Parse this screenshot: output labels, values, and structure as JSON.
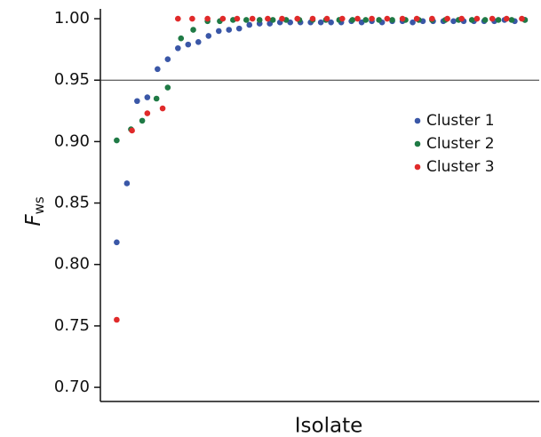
{
  "chart_data": {
    "type": "scatter",
    "x_label": "Isolate",
    "y_label": "F",
    "y_label_sub": "ws",
    "xlim": [
      0,
      43
    ],
    "ylim": [
      0.6885,
      1.008
    ],
    "yticks": [
      {
        "value": 1.0,
        "label": "1.00"
      },
      0.95,
      {
        "value": 0.9,
        "label": "0.90"
      },
      0.85,
      {
        "value": 0.8,
        "label": "0.80"
      },
      0.75,
      {
        "value": 0.7,
        "label": "0.70"
      }
    ],
    "hline": 0.95,
    "legend": "right",
    "series": [
      {
        "name": "Cluster 1",
        "color": "#3a57a7",
        "x": [
          1.6,
          2.6,
          3.6,
          4.6,
          5.6,
          6.6,
          7.6,
          8.6,
          9.6,
          10.6,
          11.6,
          12.6,
          13.6,
          14.6,
          15.6,
          16.6,
          17.6,
          18.6,
          19.6,
          20.6,
          21.6,
          22.6,
          23.6,
          24.6,
          25.6,
          26.6,
          27.6,
          28.6,
          29.6,
          30.6,
          31.6,
          32.6,
          33.6,
          34.6,
          35.6,
          36.6,
          37.6,
          38.6,
          39.6,
          40.6,
          41.6
        ],
        "values": [
          0.818,
          0.866,
          0.933,
          0.936,
          0.959,
          0.967,
          0.976,
          0.979,
          0.981,
          0.986,
          0.99,
          0.991,
          0.992,
          0.995,
          0.996,
          0.996,
          0.997,
          0.997,
          0.997,
          0.997,
          0.997,
          0.997,
          0.997,
          0.998,
          0.997,
          0.998,
          0.997,
          0.998,
          0.998,
          0.997,
          0.998,
          0.998,
          0.998,
          0.998,
          0.998,
          0.998,
          0.998,
          0.998,
          0.999,
          0.998,
          0.999
        ]
      },
      {
        "name": "Cluster 2",
        "color": "#1f7a45",
        "x": [
          1.6,
          3.0,
          4.1,
          5.5,
          6.6,
          7.9,
          9.1,
          10.5,
          11.7,
          13.0,
          14.3,
          15.6,
          16.9,
          18.2,
          19.5,
          20.8,
          22.1,
          23.4,
          24.7,
          26.0,
          27.3,
          28.6,
          29.9,
          31.2,
          32.5,
          33.8,
          35.1,
          36.4,
          37.7,
          39.0,
          40.3,
          41.6
        ],
        "values": [
          0.901,
          0.91,
          0.917,
          0.935,
          0.944,
          0.984,
          0.991,
          0.998,
          0.998,
          0.999,
          0.999,
          0.999,
          0.999,
          0.999,
          0.999,
          0.999,
          0.999,
          0.999,
          0.999,
          0.999,
          0.999,
          0.999,
          0.999,
          0.999,
          0.999,
          0.999,
          0.999,
          0.999,
          0.999,
          0.999,
          0.999,
          0.999
        ]
      },
      {
        "name": "Cluster 3",
        "color": "#e02a2a",
        "x": [
          1.6,
          3.1,
          4.6,
          6.1,
          7.6,
          9.0,
          10.5,
          12.0,
          13.4,
          14.9,
          16.4,
          17.8,
          19.3,
          20.8,
          22.2,
          23.7,
          25.2,
          26.6,
          28.1,
          29.6,
          31.0,
          32.5,
          34.0,
          35.4,
          36.9,
          38.4,
          39.8,
          41.3
        ],
        "values": [
          0.755,
          0.909,
          0.923,
          0.927,
          1.0,
          1.0,
          1.0,
          1.0,
          1.0,
          1.0,
          1.0,
          1.0,
          1.0,
          1.0,
          1.0,
          1.0,
          1.0,
          1.0,
          1.0,
          1.0,
          1.0,
          1.0,
          1.0,
          1.0,
          1.0,
          1.0,
          1.0,
          1.0
        ]
      }
    ]
  }
}
